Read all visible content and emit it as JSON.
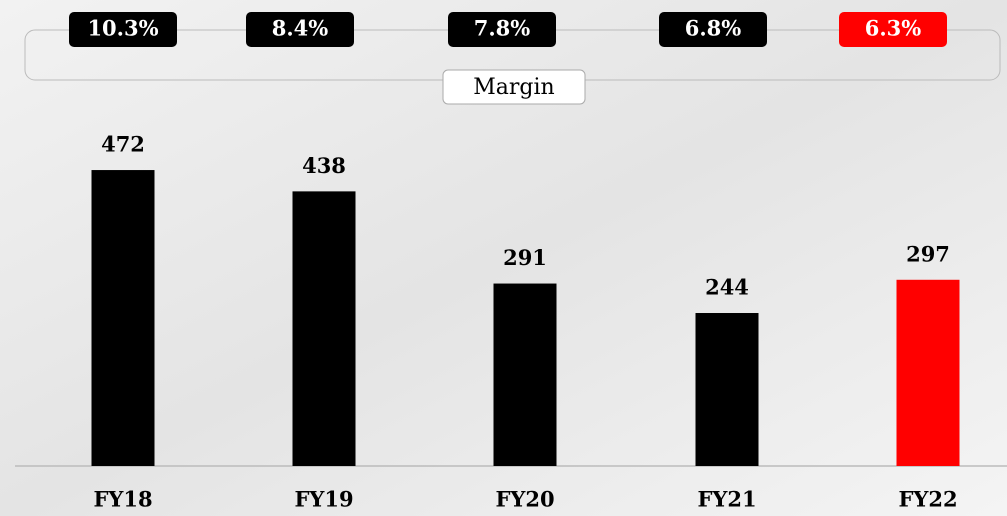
{
  "chart_data": {
    "type": "bar",
    "categories": [
      "FY18",
      "FY19",
      "FY20",
      "FY21",
      "FY22"
    ],
    "values": [
      472,
      438,
      291,
      244,
      297
    ],
    "colors": [
      "#000000",
      "#000000",
      "#000000",
      "#000000",
      "#ff0000"
    ],
    "margin": {
      "label": "Margin",
      "values": [
        10.3,
        8.4,
        7.8,
        6.8,
        6.3
      ],
      "value_labels": [
        "10.3%",
        "8.4%",
        "7.8%",
        "6.8%",
        "6.3%"
      ]
    }
  }
}
